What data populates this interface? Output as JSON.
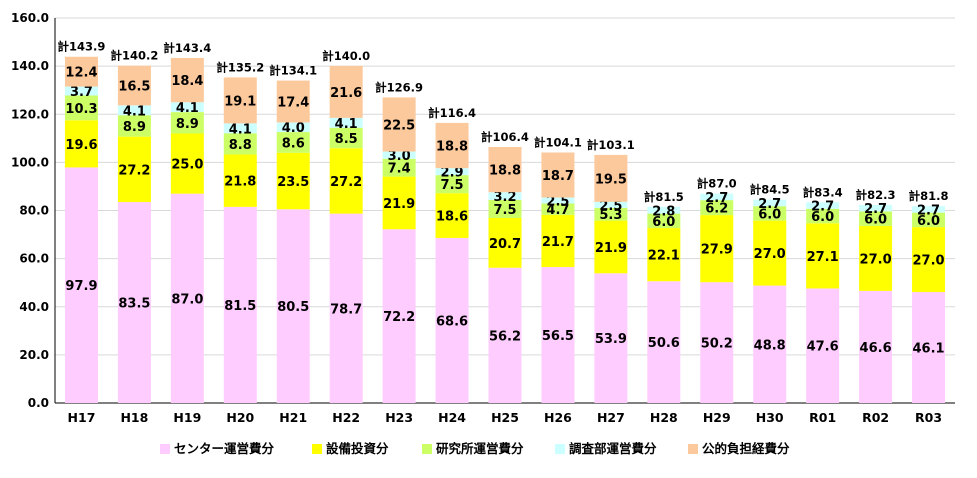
{
  "chart_data": {
    "type": "bar",
    "stacked": true,
    "categories": [
      "H17",
      "H18",
      "H19",
      "H20",
      "H21",
      "H22",
      "H23",
      "H24",
      "H25",
      "H26",
      "H27",
      "H28",
      "H29",
      "H30",
      "R01",
      "R02",
      "R03"
    ],
    "series": [
      {
        "name": "センター運営費分",
        "color": "#ffccff",
        "values": [
          97.9,
          83.5,
          87.0,
          81.5,
          80.5,
          78.7,
          72.2,
          68.6,
          56.2,
          56.5,
          53.9,
          50.6,
          50.2,
          48.8,
          47.6,
          46.6,
          46.1
        ]
      },
      {
        "name": "設備投資分",
        "color": "#ffff00",
        "values": [
          19.6,
          27.2,
          25.0,
          21.8,
          23.5,
          27.2,
          21.9,
          18.6,
          20.7,
          21.7,
          21.9,
          22.1,
          27.9,
          27.0,
          27.1,
          27.0,
          27.0
        ]
      },
      {
        "name": "研究所運営費分",
        "color": "#ccff66",
        "values": [
          10.3,
          8.9,
          8.9,
          8.8,
          8.6,
          8.5,
          7.4,
          7.5,
          7.5,
          4.7,
          5.3,
          6.0,
          6.2,
          6.0,
          6.0,
          6.0,
          6.0
        ]
      },
      {
        "name": "調査部運営費分",
        "color": "#ccffff",
        "values": [
          3.7,
          4.1,
          4.1,
          4.1,
          4.0,
          4.1,
          3.0,
          2.9,
          3.2,
          2.5,
          2.5,
          2.8,
          2.7,
          2.7,
          2.7,
          2.7,
          2.7
        ]
      },
      {
        "name": "公的負担経費分",
        "color": "#fcc99c",
        "values": [
          12.4,
          16.5,
          18.4,
          19.1,
          17.4,
          21.6,
          22.5,
          18.8,
          18.8,
          18.7,
          19.5,
          null,
          null,
          null,
          null,
          null,
          null
        ]
      }
    ],
    "total_labels": [
      "計143.9",
      "計140.2",
      "計143.4",
      "計135.2",
      "計134.1",
      "計140.0",
      "計126.9",
      "計116.4",
      "計106.4",
      "計104.1",
      "計103.1",
      "計81.5",
      "計87.0",
      "計84.5",
      "計83.4",
      "計82.3",
      "計81.8"
    ],
    "y_ticks": [
      "0.0",
      "20.0",
      "40.0",
      "60.0",
      "80.0",
      "100.0",
      "120.0",
      "140.0",
      "160.0"
    ],
    "ylim": [
      0,
      160
    ],
    "grid": true,
    "legend_position": "bottom",
    "xlabel": "",
    "ylabel": ""
  }
}
